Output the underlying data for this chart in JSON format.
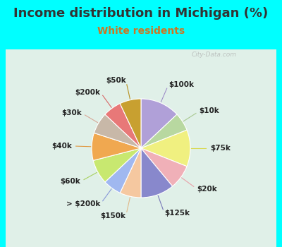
{
  "title": "Income distribution in Michigan (%)",
  "subtitle": "White residents",
  "title_color": "#333333",
  "subtitle_color": "#cc7722",
  "background_cyan": "#00ffff",
  "background_chart": "#e0f0e8",
  "watermark": "City-Data.com",
  "labels": [
    "$100k",
    "$10k",
    "$75k",
    "$20k",
    "$125k",
    "$150k",
    "> $200k",
    "$60k",
    "$40k",
    "$30k",
    "$200k",
    "$50k"
  ],
  "values": [
    13,
    6,
    12,
    8,
    11,
    7,
    6,
    8,
    9,
    7,
    6,
    7
  ],
  "colors": [
    "#b0a0d8",
    "#b8d8a0",
    "#f0f080",
    "#f0b0b8",
    "#8888cc",
    "#f5c8a0",
    "#a0b8f0",
    "#c8e870",
    "#f0a850",
    "#c8b8a8",
    "#e87878",
    "#c8a030"
  ],
  "line_colors": [
    "#a090c8",
    "#a8c890",
    "#d8d850",
    "#e8a0a8",
    "#7878b8",
    "#e0b888",
    "#8898d8",
    "#a8d060",
    "#e09840",
    "#d8a898",
    "#d86868",
    "#b89020"
  ],
  "title_fontsize": 13,
  "subtitle_fontsize": 10,
  "label_fontsize": 7.5
}
